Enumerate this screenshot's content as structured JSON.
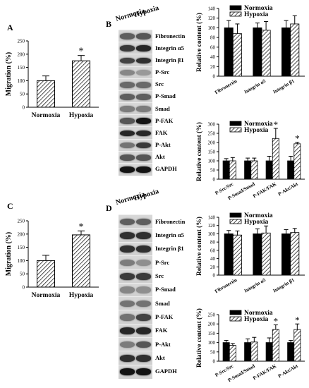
{
  "panel_labels": {
    "a": "A",
    "b": "B",
    "c": "C",
    "d": "D"
  },
  "blots": [
    {
      "header": [
        "Normoxia",
        "Hypoxia"
      ],
      "rows": [
        {
          "label": "Fibronectin",
          "l": [
            0.55,
            0.6
          ]
        },
        {
          "label": "Integrin α5",
          "l": [
            0.75,
            0.85
          ]
        },
        {
          "label": "Integrin β1",
          "l": [
            0.7,
            0.8
          ]
        },
        {
          "label": "P-Src",
          "l": [
            0.35,
            0.25
          ]
        },
        {
          "label": "Src",
          "l": [
            0.5,
            0.5
          ]
        },
        {
          "label": "P-Smad",
          "l": [
            0.55,
            0.55
          ]
        },
        {
          "label": "Smad",
          "l": [
            0.4,
            0.4
          ]
        },
        {
          "label": "P-FAK",
          "l": [
            0.6,
            0.95
          ]
        },
        {
          "label": "FAK",
          "l": [
            0.85,
            0.85
          ]
        },
        {
          "label": "P-Akt",
          "l": [
            0.45,
            0.75
          ]
        },
        {
          "label": "Akt",
          "l": [
            0.6,
            0.6
          ]
        },
        {
          "label": "GAPDH",
          "l": [
            0.95,
            0.95
          ]
        }
      ]
    },
    {
      "header": [
        "Normoxia",
        "Hypoxia"
      ],
      "rows": [
        {
          "label": "Fibronectin",
          "l": [
            0.55,
            0.55
          ]
        },
        {
          "label": "Integrin α5",
          "l": [
            0.8,
            0.8
          ]
        },
        {
          "label": "Integrin β1",
          "l": [
            0.8,
            0.8
          ]
        },
        {
          "label": "P-Src",
          "l": [
            0.4,
            0.3
          ]
        },
        {
          "label": "Src",
          "l": [
            0.75,
            0.75
          ]
        },
        {
          "label": "P-Smad",
          "l": [
            0.35,
            0.3
          ]
        },
        {
          "label": "Smad",
          "l": [
            0.45,
            0.45
          ]
        },
        {
          "label": "P-FAK",
          "l": [
            0.45,
            0.7
          ]
        },
        {
          "label": "FAK",
          "l": [
            0.85,
            0.85
          ]
        },
        {
          "label": "P-Akt",
          "l": [
            0.4,
            0.6
          ]
        },
        {
          "label": "Akt",
          "l": [
            0.8,
            0.8
          ]
        },
        {
          "label": "GAPDH",
          "l": [
            0.95,
            0.95
          ]
        }
      ]
    }
  ],
  "chart_data": [
    {
      "panel": "A",
      "type": "bar",
      "categories": [
        "Normoxia",
        "Hypoxia"
      ],
      "values": [
        100,
        175
      ],
      "errors": [
        18,
        20
      ],
      "ylabel": "Migration (%)",
      "ylim": [
        0,
        250
      ],
      "yticks": [
        "0",
        "50",
        "100",
        "150",
        "200",
        "250"
      ],
      "annotations": [
        "",
        "*"
      ]
    },
    {
      "panel": "C",
      "type": "bar",
      "categories": [
        "Normoxia",
        "Hypoxia"
      ],
      "values": [
        100,
        197
      ],
      "errors": [
        20,
        15
      ],
      "ylabel": "Migration (%)",
      "ylim": [
        0,
        250
      ],
      "yticks": [
        "0",
        "50",
        "100",
        "150",
        "200",
        "250"
      ],
      "annotations": [
        "",
        "*"
      ]
    },
    {
      "panel": "B-top",
      "type": "bar",
      "categories": [
        "Fibronectin",
        "Integrin α5",
        "Integrin β1"
      ],
      "series": [
        {
          "name": "Normoxia",
          "values": [
            100,
            100,
            100
          ],
          "errors": [
            15,
            10,
            15
          ]
        },
        {
          "name": "Hypoxia",
          "values": [
            88,
            95,
            108
          ],
          "errors": [
            20,
            18,
            17
          ]
        }
      ],
      "ylabel": "Relative content (%)",
      "ylim": [
        0,
        140
      ],
      "yticks": [
        "0",
        "20",
        "40",
        "60",
        "80",
        "100",
        "120",
        "140"
      ],
      "legend": "top-left",
      "annotations": [
        "",
        "",
        ""
      ]
    },
    {
      "panel": "B-bottom",
      "type": "bar",
      "categories": [
        "P-Src/Src",
        "P-Smad/Smad",
        "P-FAK/FAK",
        "P-Akt/Akt"
      ],
      "series": [
        {
          "name": "Normoxia",
          "values": [
            100,
            100,
            100,
            100
          ],
          "errors": [
            12,
            15,
            25,
            25
          ]
        },
        {
          "name": "Hypoxia",
          "values": [
            100,
            100,
            222,
            193
          ],
          "errors": [
            18,
            15,
            55,
            8
          ]
        }
      ],
      "ylabel": "Relative content (%)",
      "ylim": [
        0,
        300
      ],
      "yticks": [
        "0",
        "50",
        "100",
        "150",
        "200",
        "250",
        "300"
      ],
      "legend": "top-left",
      "annotations": [
        "",
        "",
        "*",
        "*"
      ]
    },
    {
      "panel": "D-top",
      "type": "bar",
      "categories": [
        "Fibronectin",
        "Integrin α5",
        "Integrin β1"
      ],
      "series": [
        {
          "name": "Normoxia",
          "values": [
            100,
            100,
            100
          ],
          "errors": [
            8,
            12,
            10
          ]
        },
        {
          "name": "Hypoxia",
          "values": [
            97,
            102,
            103
          ],
          "errors": [
            10,
            17,
            10
          ]
        }
      ],
      "ylabel": "Relative content (%)",
      "ylim": [
        0,
        140
      ],
      "yticks": [
        "0",
        "20",
        "40",
        "60",
        "80",
        "100",
        "120",
        "140"
      ],
      "legend": "top-left",
      "annotations": [
        "",
        "",
        ""
      ]
    },
    {
      "panel": "D-bottom",
      "type": "bar",
      "categories": [
        "P-Src/Src",
        "P-Smad/Smad",
        "P-FAK/FAK",
        "P-Akt/Akt"
      ],
      "series": [
        {
          "name": "Normoxia",
          "values": [
            100,
            100,
            100,
            100
          ],
          "errors": [
            12,
            20,
            25,
            12
          ]
        },
        {
          "name": "Hypoxia",
          "values": [
            85,
            103,
            170,
            170
          ],
          "errors": [
            10,
            25,
            25,
            30
          ]
        }
      ],
      "ylabel": "Relative content (%)",
      "ylim": [
        0,
        250
      ],
      "yticks": [
        "0",
        "50",
        "100",
        "150",
        "200",
        "250"
      ],
      "legend": "top-left",
      "annotations": [
        "",
        "",
        "*",
        "*"
      ]
    }
  ]
}
